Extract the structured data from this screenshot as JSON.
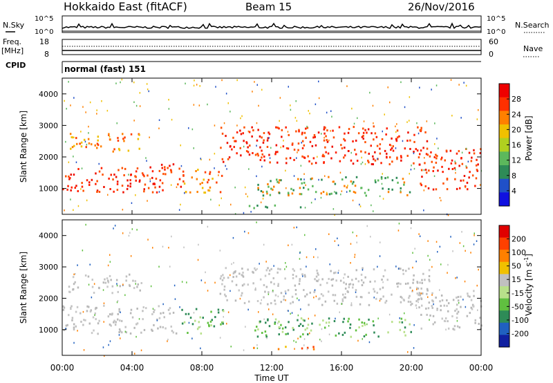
{
  "header": {
    "title": "Hokkaido East (fitACF)",
    "beam": "Beam 15",
    "date": "26/Nov/2016"
  },
  "top_panels": {
    "nsky_label": "N.Sky",
    "nsky_ticks": [
      "10^5",
      "10^0"
    ],
    "nsearch_label": "N.Search",
    "nsearch_ticks": [
      "10^5",
      "10^0"
    ],
    "freq_label": "Freq.",
    "freq_unit": "[MHz]",
    "freq_ticks": [
      "18",
      "8"
    ],
    "nave_label": "Nave",
    "nave_ticks": [
      "60",
      "0"
    ],
    "cpid_label": "CPID",
    "cpid_value": "normal (fast) 151"
  },
  "chart_data": [
    {
      "type": "heatmap",
      "quantity": "Power",
      "ylabel": "Slant Range [km]",
      "yticks": [
        "4000",
        "3000",
        "2000",
        "1000"
      ],
      "ylim": [
        180,
        4500
      ],
      "xlim_hours": [
        0,
        24
      ],
      "colorbar_label": "Power [dB]",
      "colorbar_ticks": [
        "28",
        "24",
        "20",
        "16",
        "12",
        "8",
        "4"
      ],
      "colorbar_colors": [
        "#1010e0",
        "#2050c8",
        "#2e8b57",
        "#5cb85c",
        "#b0d020",
        "#f0c000",
        "#ff8000",
        "#ff3000",
        "#ee0000"
      ],
      "regions": [
        {
          "t0": 0.0,
          "t1": 6.8,
          "r0": 900,
          "r1": 1800,
          "level": "high"
        },
        {
          "t0": 0.3,
          "t1": 4.5,
          "r0": 2200,
          "r1": 2800,
          "level": "medium"
        },
        {
          "t0": 6.8,
          "t1": 9.2,
          "r0": 900,
          "r1": 1700,
          "level": "medium"
        },
        {
          "t0": 9.0,
          "t1": 21.0,
          "r0": 1800,
          "r1": 3000,
          "level": "high"
        },
        {
          "t0": 20.3,
          "t1": 24.0,
          "r0": 1000,
          "r1": 2300,
          "level": "high"
        },
        {
          "t0": 11.0,
          "t1": 20.0,
          "r0": 800,
          "r1": 1400,
          "level": "low"
        },
        {
          "t0": 10.5,
          "t1": 14.5,
          "r0": 400,
          "r1": 500,
          "level": "low"
        }
      ]
    },
    {
      "type": "heatmap",
      "quantity": "Velocity",
      "ylabel": "Slant Range [km]",
      "yticks": [
        "4000",
        "3000",
        "2000",
        "1000"
      ],
      "ylim": [
        180,
        4500
      ],
      "xlim_hours": [
        0,
        24
      ],
      "xticks": [
        "00:00",
        "04:00",
        "08:00",
        "12:00",
        "16:00",
        "20:00",
        "00:00"
      ],
      "xlabel": "Time UT",
      "colorbar_label": "Velocity [m s-1]",
      "colorbar_unit_base": "Velocity [m s",
      "colorbar_unit_exp": "-1",
      "colorbar_unit_close": "]",
      "colorbar_ticks": [
        "200",
        "100",
        "50",
        "15",
        "-15",
        "-50",
        "-100",
        "-200"
      ],
      "colorbar_colors": [
        "#1020a0",
        "#2060c0",
        "#2e8b57",
        "#60c040",
        "#b8e08a",
        "#c0c0c0",
        "#f0c000",
        "#ff8000",
        "#ff4000",
        "#e00000"
      ],
      "regions": [
        {
          "t0": 0.0,
          "t1": 6.8,
          "r0": 900,
          "r1": 1800,
          "level": "ground"
        },
        {
          "t0": 0.3,
          "t1": 4.5,
          "r0": 2200,
          "r1": 2800,
          "level": "ground"
        },
        {
          "t0": 6.8,
          "t1": 9.2,
          "r0": 900,
          "r1": 1700,
          "level": "toward"
        },
        {
          "t0": 9.0,
          "t1": 21.0,
          "r0": 1800,
          "r1": 3000,
          "level": "ground"
        },
        {
          "t0": 20.3,
          "t1": 24.0,
          "r0": 1000,
          "r1": 2300,
          "level": "ground"
        },
        {
          "t0": 11.0,
          "t1": 20.0,
          "r0": 800,
          "r1": 1400,
          "level": "toward"
        },
        {
          "t0": 10.5,
          "t1": 14.5,
          "r0": 400,
          "r1": 500,
          "level": "away"
        }
      ]
    }
  ]
}
